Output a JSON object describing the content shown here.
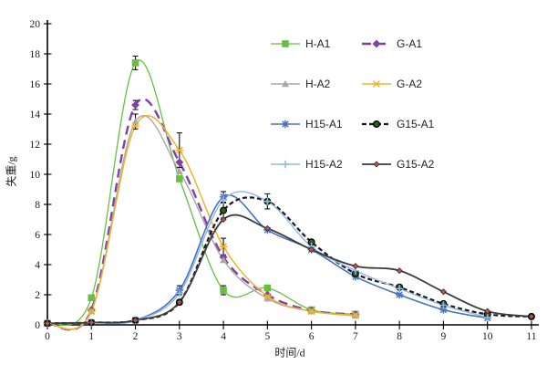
{
  "chart_data": {
    "type": "line",
    "title": "",
    "xlabel": "时间/d",
    "ylabel": "失重/g",
    "xlim": [
      0,
      11
    ],
    "ylim": [
      0,
      20
    ],
    "x_ticks": [
      0,
      1,
      2,
      3,
      4,
      5,
      6,
      7,
      8,
      9,
      10,
      11
    ],
    "y_ticks": [
      0,
      2,
      4,
      6,
      8,
      10,
      12,
      14,
      16,
      18,
      20
    ],
    "grid": false,
    "legend_position": "top-center-right, two columns, no border",
    "series": [
      {
        "name": "H-A1",
        "color": "#66bf40",
        "line": "solid",
        "width": 1.3,
        "marker": "square",
        "x": [
          0,
          1,
          2,
          3,
          4,
          5,
          6,
          7
        ],
        "y": [
          0.1,
          1.8,
          17.4,
          9.7,
          2.3,
          2.45,
          1.0,
          0.7
        ]
      },
      {
        "name": "G-A1",
        "color": "#8040a8",
        "line": "dashed",
        "dash": "10,6",
        "width": 2.4,
        "marker": "diamond",
        "x": [
          0,
          1,
          2,
          3,
          4,
          5,
          6,
          7
        ],
        "y": [
          0.1,
          1.0,
          14.6,
          10.8,
          4.5,
          2.0,
          0.95,
          0.7
        ]
      },
      {
        "name": "H-A2",
        "color": "#a8a8a8",
        "line": "solid",
        "width": 1.4,
        "marker": "triangle",
        "x": [
          0,
          1,
          2,
          3,
          4,
          5,
          6,
          7
        ],
        "y": [
          0.1,
          0.9,
          13.5,
          10.2,
          4.3,
          1.75,
          0.9,
          0.6
        ]
      },
      {
        "name": "G-A2",
        "color": "#f0b32e",
        "line": "solid",
        "width": 1.5,
        "marker": "star4",
        "x": [
          0,
          1,
          2,
          3,
          4,
          5,
          6,
          7
        ],
        "y": [
          0.1,
          0.9,
          13.2,
          11.6,
          5.2,
          1.9,
          0.9,
          0.65
        ]
      },
      {
        "name": "H15-A1",
        "color": "#4a73c0",
        "line": "solid",
        "width": 1.6,
        "marker": "asterisk",
        "x": [
          0,
          1,
          2,
          3,
          4,
          5,
          6,
          7,
          8,
          9,
          10
        ],
        "y": [
          0.1,
          0.15,
          0.3,
          2.3,
          8.5,
          6.3,
          5.0,
          3.2,
          2.0,
          1.0,
          0.45
        ]
      },
      {
        "name": "G15-A1",
        "color": "#1a1a1a",
        "line": "dashed",
        "dash": "5,3",
        "width": 2.2,
        "marker": "circle",
        "marker_fill": "#2f5d1f",
        "marker_edge": "#000000",
        "x": [
          0,
          1,
          2,
          3,
          4,
          5,
          6,
          7,
          8,
          9,
          10,
          11
        ],
        "y": [
          0.1,
          0.15,
          0.3,
          1.5,
          7.6,
          8.2,
          5.5,
          3.4,
          2.5,
          1.4,
          0.7,
          0.55
        ]
      },
      {
        "name": "H15-A2",
        "color": "#92b9e4",
        "line": "solid",
        "width": 1.4,
        "marker": "plus",
        "x": [
          0,
          1,
          2,
          3,
          4,
          5,
          6,
          7,
          8,
          9,
          10
        ],
        "y": [
          0.1,
          0.15,
          0.3,
          2.1,
          8.3,
          8.2,
          5.2,
          3.6,
          2.4,
          1.3,
          0.5
        ]
      },
      {
        "name": "G15-A2",
        "color": "#3c3c3c",
        "line": "solid",
        "width": 1.8,
        "marker": "sdiamond",
        "marker_fill": "#c0504d",
        "marker_edge": "#222222",
        "x": [
          0,
          1,
          2,
          3,
          4,
          5,
          6,
          7,
          8,
          9,
          10,
          11
        ],
        "y": [
          0.1,
          0.15,
          0.3,
          1.5,
          7.0,
          6.4,
          5.0,
          3.9,
          3.6,
          2.2,
          0.9,
          0.55
        ]
      }
    ],
    "error_bars": [
      {
        "series": "H-A1",
        "x": 2,
        "err": 0.45
      },
      {
        "series": "H-A1",
        "x": 4,
        "err": 0.3
      },
      {
        "series": "G-A1",
        "x": 2,
        "err": 0.3
      },
      {
        "series": "H-A2",
        "x": 2,
        "err": 0.5
      },
      {
        "series": "G-A2",
        "x": 3,
        "err": 1.15
      },
      {
        "series": "G-A2",
        "x": 4,
        "err": 0.55
      },
      {
        "series": "H15-A1",
        "x": 3,
        "err": 0.3
      },
      {
        "series": "H15-A1",
        "x": 4,
        "err": 0.35
      },
      {
        "series": "G15-A1",
        "x": 4,
        "err": 0.5
      },
      {
        "series": "G15-A1",
        "x": 5,
        "err": 0.5
      },
      {
        "series": "G15-A2",
        "x": 2,
        "err": 0.15
      }
    ]
  }
}
